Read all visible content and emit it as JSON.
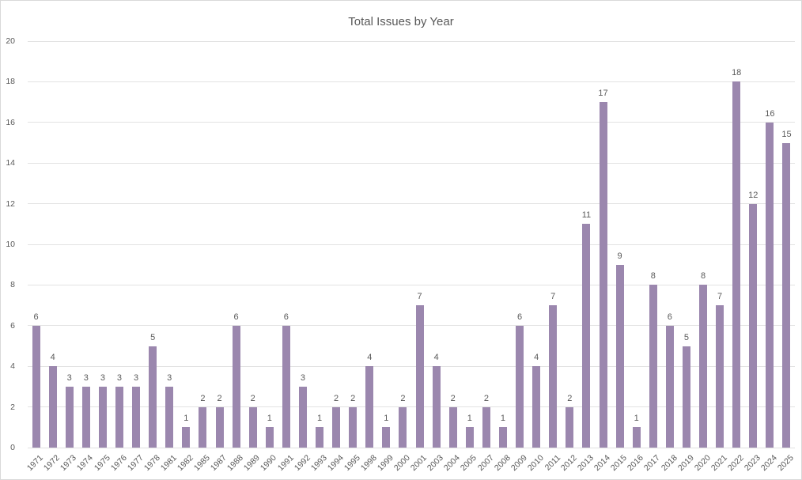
{
  "chart": {
    "title": "Total Issues by Year"
  },
  "chart_data": {
    "type": "bar",
    "title": "Total Issues by Year",
    "xlabel": "",
    "ylabel": "",
    "categories": [
      "1971",
      "1972",
      "1973",
      "1974",
      "1975",
      "1976",
      "1977",
      "1978",
      "1981",
      "1982",
      "1985",
      "1987",
      "1988",
      "1989",
      "1990",
      "1991",
      "1992",
      "1993",
      "1994",
      "1995",
      "1998",
      "1999",
      "2000",
      "2001",
      "2003",
      "2004",
      "2005",
      "2007",
      "2008",
      "2009",
      "2010",
      "2011",
      "2012",
      "2013",
      "2014",
      "2015",
      "2016",
      "2017",
      "2018",
      "2019",
      "2020",
      "2021",
      "2022",
      "2023",
      "2024",
      "2025"
    ],
    "values": [
      6,
      4,
      3,
      3,
      3,
      3,
      3,
      5,
      3,
      1,
      2,
      2,
      6,
      2,
      1,
      6,
      3,
      1,
      2,
      2,
      4,
      1,
      2,
      7,
      4,
      2,
      1,
      2,
      1,
      6,
      4,
      7,
      2,
      11,
      17,
      9,
      1,
      8,
      6,
      5,
      8,
      7,
      18,
      12,
      16,
      15
    ],
    "ylim": [
      0,
      20
    ],
    "yticks": [
      0,
      2,
      4,
      6,
      8,
      10,
      12,
      14,
      16,
      18,
      20
    ],
    "grid": true,
    "legend": false,
    "data_labels": true,
    "bar_color": "#9b87ae",
    "gridline_color": "#e2e2e2",
    "text_color": "#595959",
    "frame_color": "#d9d9d9"
  }
}
